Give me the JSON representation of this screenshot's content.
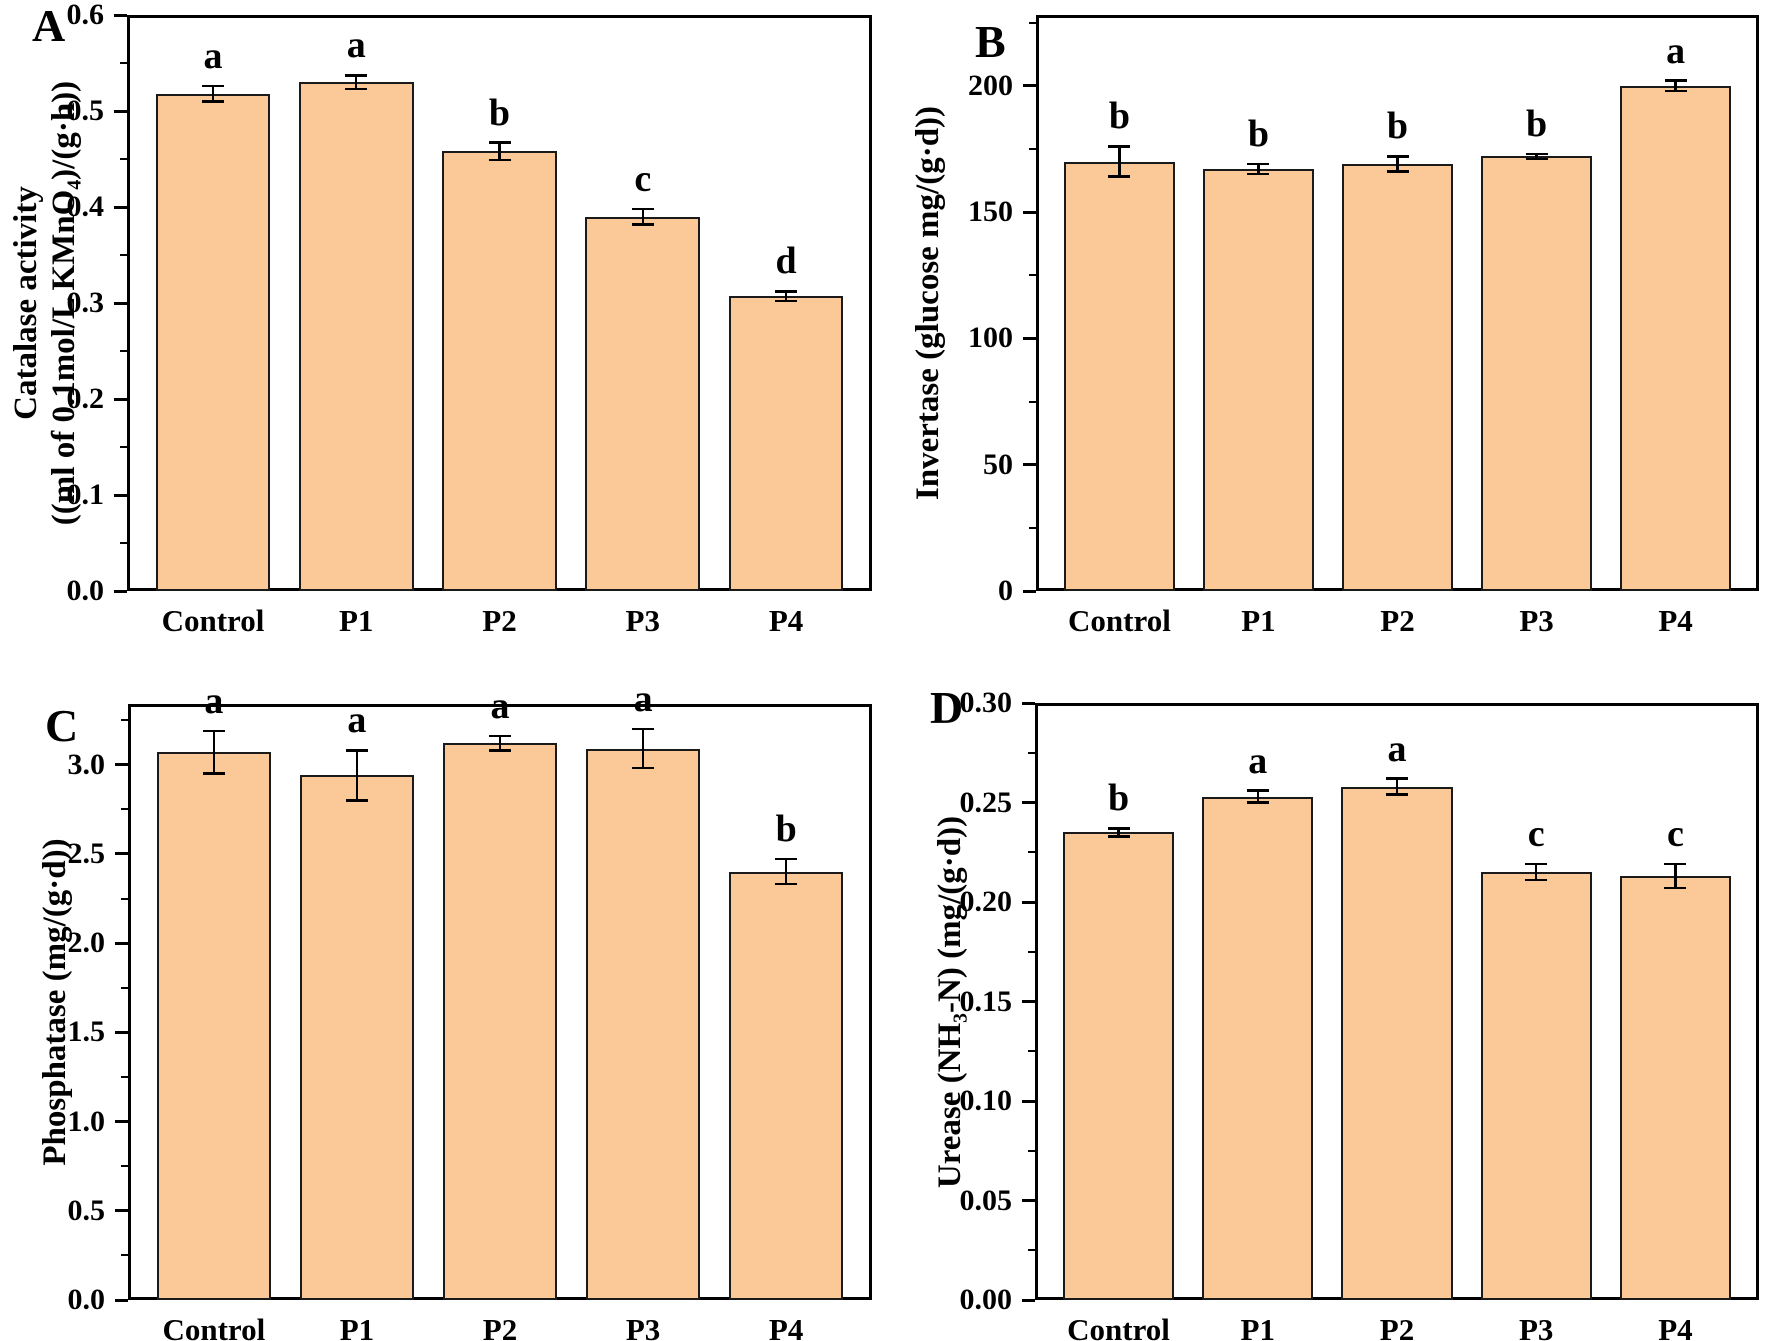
{
  "figure": {
    "background": "#ffffff"
  },
  "colors": {
    "bar_fill": "#FAC997",
    "bar_edge": "#1a1a1a",
    "axis": "#000000",
    "text": "#000000"
  },
  "chart_data": [
    {
      "type": "bar",
      "panel_label": "A",
      "ylabel_lines": [
        "Catalase activity",
        "((ml of 0.1mol/L KMnO₄)/(g·h))"
      ],
      "categories": [
        "Control",
        "P1",
        "P2",
        "P3",
        "P4"
      ],
      "values": [
        0.518,
        0.53,
        0.458,
        0.39,
        0.307
      ],
      "errors": [
        0.008,
        0.007,
        0.009,
        0.008,
        0.005
      ],
      "sig_letters": [
        "a",
        "a",
        "b",
        "c",
        "d"
      ],
      "ylim": [
        0,
        0.6
      ],
      "ytick_step": 0.1,
      "minor_step": 0.05,
      "tick_decimals": 1,
      "legend": "none",
      "grid": false
    },
    {
      "type": "bar",
      "panel_label": "B",
      "ylabel_lines": [
        "Invertase (glucose mg/(g·d))"
      ],
      "categories": [
        "Control",
        "P1",
        "P2",
        "P3",
        "P4"
      ],
      "values": [
        170,
        167,
        169,
        172,
        200
      ],
      "errors": [
        6,
        2,
        3,
        1,
        2
      ],
      "sig_letters": [
        "b",
        "b",
        "b",
        "b",
        "a"
      ],
      "ylim": [
        0,
        228
      ],
      "ytick_step": 50,
      "minor_step": 25,
      "tick_decimals": 0,
      "legend": "none",
      "grid": false
    },
    {
      "type": "bar",
      "panel_label": "C",
      "ylabel_lines": [
        "Phosphatase (mg/(g·d))"
      ],
      "categories": [
        "Control",
        "P1",
        "P2",
        "P3",
        "P4"
      ],
      "values": [
        3.07,
        2.94,
        3.12,
        3.09,
        2.4
      ],
      "errors": [
        0.12,
        0.14,
        0.04,
        0.11,
        0.07
      ],
      "sig_letters": [
        "a",
        "a",
        "a",
        "a",
        "b"
      ],
      "ylim": [
        0,
        3.34
      ],
      "ytick_step": 0.5,
      "minor_step": 0.25,
      "tick_decimals": 1,
      "legend": "none",
      "grid": false
    },
    {
      "type": "bar",
      "panel_label": "D",
      "ylabel_lines": [
        "Urease (NH₃-N)  (mg/(g·d))"
      ],
      "categories": [
        "Control",
        "P1",
        "P2",
        "P3",
        "P4"
      ],
      "values": [
        0.235,
        0.253,
        0.258,
        0.215,
        0.213
      ],
      "errors": [
        0.002,
        0.003,
        0.004,
        0.004,
        0.006
      ],
      "sig_letters": [
        "b",
        "a",
        "a",
        "c",
        "c"
      ],
      "ylim": [
        0,
        0.3
      ],
      "ytick_step": 0.05,
      "minor_step": 0.025,
      "tick_decimals": 2,
      "legend": "none",
      "grid": false
    }
  ]
}
